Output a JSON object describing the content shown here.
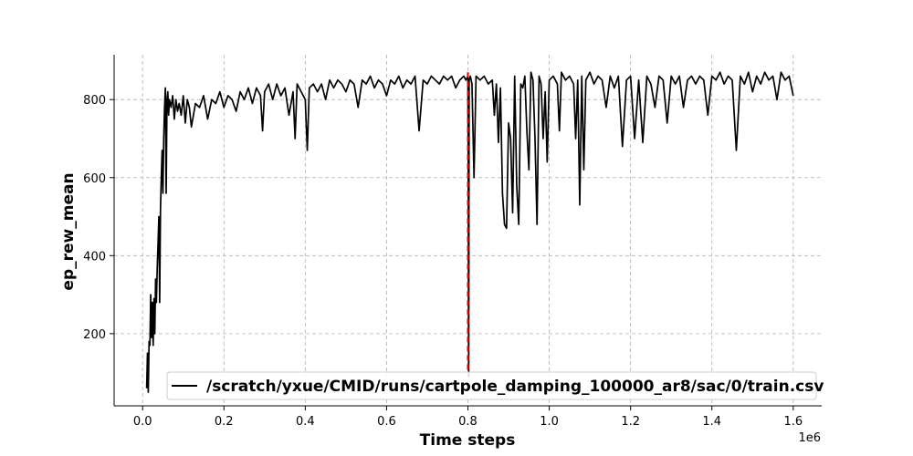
{
  "chart_data": {
    "type": "line",
    "title": "",
    "xlabel": "Time steps",
    "ylabel": "ep_rew_mean",
    "x_offset_label": "1e6",
    "xlim": [
      -0.07,
      1.67
    ],
    "ylim": [
      15,
      915
    ],
    "x_ticks": [
      0.0,
      0.2,
      0.4,
      0.6,
      0.8,
      1.0,
      1.2,
      1.4,
      1.6
    ],
    "x_tick_labels": [
      "0.0",
      "0.2",
      "0.4",
      "0.6",
      "0.8",
      "1.0",
      "1.2",
      "1.4",
      "1.6"
    ],
    "y_ticks": [
      200,
      400,
      600,
      800
    ],
    "y_tick_labels": [
      "200",
      "400",
      "600",
      "800"
    ],
    "grid": true,
    "legend_position": "lower-right",
    "vline": {
      "x": 0.8,
      "color": "#e00000",
      "style": "dashed"
    },
    "series": [
      {
        "name": "/scratch/yxue/CMID/runs/cartpole_damping_100000_ar8/sac/0/train.csv",
        "color": "#000000",
        "points": [
          [
            0.01,
            60
          ],
          [
            0.012,
            150
          ],
          [
            0.014,
            50
          ],
          [
            0.016,
            180
          ],
          [
            0.018,
            170
          ],
          [
            0.02,
            300
          ],
          [
            0.022,
            190
          ],
          [
            0.024,
            280
          ],
          [
            0.026,
            170
          ],
          [
            0.028,
            290
          ],
          [
            0.03,
            200
          ],
          [
            0.032,
            340
          ],
          [
            0.034,
            280
          ],
          [
            0.036,
            370
          ],
          [
            0.038,
            430
          ],
          [
            0.04,
            500
          ],
          [
            0.042,
            280
          ],
          [
            0.044,
            520
          ],
          [
            0.046,
            600
          ],
          [
            0.048,
            670
          ],
          [
            0.05,
            560
          ],
          [
            0.052,
            700
          ],
          [
            0.054,
            780
          ],
          [
            0.056,
            830
          ],
          [
            0.058,
            560
          ],
          [
            0.06,
            800
          ],
          [
            0.062,
            820
          ],
          [
            0.064,
            760
          ],
          [
            0.066,
            800
          ],
          [
            0.07,
            780
          ],
          [
            0.074,
            810
          ],
          [
            0.078,
            750
          ],
          [
            0.082,
            800
          ],
          [
            0.086,
            770
          ],
          [
            0.09,
            790
          ],
          [
            0.095,
            760
          ],
          [
            0.1,
            810
          ],
          [
            0.105,
            740
          ],
          [
            0.11,
            800
          ],
          [
            0.115,
            780
          ],
          [
            0.12,
            730
          ],
          [
            0.13,
            790
          ],
          [
            0.14,
            780
          ],
          [
            0.15,
            810
          ],
          [
            0.16,
            750
          ],
          [
            0.17,
            800
          ],
          [
            0.18,
            790
          ],
          [
            0.19,
            820
          ],
          [
            0.2,
            780
          ],
          [
            0.21,
            810
          ],
          [
            0.22,
            800
          ],
          [
            0.23,
            770
          ],
          [
            0.24,
            820
          ],
          [
            0.25,
            800
          ],
          [
            0.26,
            830
          ],
          [
            0.27,
            790
          ],
          [
            0.28,
            830
          ],
          [
            0.29,
            810
          ],
          [
            0.295,
            720
          ],
          [
            0.3,
            820
          ],
          [
            0.31,
            840
          ],
          [
            0.32,
            800
          ],
          [
            0.33,
            840
          ],
          [
            0.34,
            810
          ],
          [
            0.35,
            830
          ],
          [
            0.36,
            760
          ],
          [
            0.37,
            820
          ],
          [
            0.375,
            700
          ],
          [
            0.38,
            840
          ],
          [
            0.39,
            820
          ],
          [
            0.4,
            800
          ],
          [
            0.405,
            670
          ],
          [
            0.41,
            830
          ],
          [
            0.42,
            840
          ],
          [
            0.43,
            820
          ],
          [
            0.44,
            840
          ],
          [
            0.45,
            800
          ],
          [
            0.46,
            850
          ],
          [
            0.47,
            830
          ],
          [
            0.48,
            850
          ],
          [
            0.49,
            840
          ],
          [
            0.5,
            820
          ],
          [
            0.51,
            850
          ],
          [
            0.52,
            840
          ],
          [
            0.53,
            780
          ],
          [
            0.54,
            850
          ],
          [
            0.55,
            840
          ],
          [
            0.56,
            860
          ],
          [
            0.57,
            830
          ],
          [
            0.58,
            850
          ],
          [
            0.59,
            840
          ],
          [
            0.6,
            810
          ],
          [
            0.61,
            850
          ],
          [
            0.62,
            840
          ],
          [
            0.63,
            860
          ],
          [
            0.64,
            830
          ],
          [
            0.65,
            850
          ],
          [
            0.66,
            840
          ],
          [
            0.67,
            860
          ],
          [
            0.68,
            720
          ],
          [
            0.69,
            850
          ],
          [
            0.7,
            840
          ],
          [
            0.71,
            860
          ],
          [
            0.72,
            850
          ],
          [
            0.73,
            840
          ],
          [
            0.74,
            860
          ],
          [
            0.75,
            850
          ],
          [
            0.76,
            860
          ],
          [
            0.77,
            830
          ],
          [
            0.78,
            850
          ],
          [
            0.79,
            860
          ],
          [
            0.795,
            850
          ],
          [
            0.8,
            860
          ],
          [
            0.801,
            560
          ],
          [
            0.802,
            90
          ],
          [
            0.803,
            850
          ],
          [
            0.806,
            860
          ],
          [
            0.81,
            840
          ],
          [
            0.815,
            600
          ],
          [
            0.82,
            860
          ],
          [
            0.83,
            850
          ],
          [
            0.84,
            860
          ],
          [
            0.85,
            840
          ],
          [
            0.86,
            850
          ],
          [
            0.865,
            760
          ],
          [
            0.87,
            840
          ],
          [
            0.875,
            690
          ],
          [
            0.88,
            830
          ],
          [
            0.885,
            560
          ],
          [
            0.89,
            480
          ],
          [
            0.895,
            470
          ],
          [
            0.9,
            740
          ],
          [
            0.905,
            700
          ],
          [
            0.91,
            510
          ],
          [
            0.915,
            860
          ],
          [
            0.92,
            580
          ],
          [
            0.925,
            480
          ],
          [
            0.93,
            840
          ],
          [
            0.935,
            830
          ],
          [
            0.94,
            860
          ],
          [
            0.945,
            720
          ],
          [
            0.95,
            620
          ],
          [
            0.955,
            870
          ],
          [
            0.96,
            850
          ],
          [
            0.965,
            700
          ],
          [
            0.97,
            480
          ],
          [
            0.975,
            860
          ],
          [
            0.98,
            840
          ],
          [
            0.985,
            700
          ],
          [
            0.99,
            820
          ],
          [
            0.995,
            640
          ],
          [
            1.0,
            850
          ],
          [
            1.01,
            860
          ],
          [
            1.02,
            840
          ],
          [
            1.025,
            720
          ],
          [
            1.03,
            870
          ],
          [
            1.04,
            850
          ],
          [
            1.05,
            860
          ],
          [
            1.06,
            840
          ],
          [
            1.065,
            700
          ],
          [
            1.07,
            850
          ],
          [
            1.075,
            530
          ],
          [
            1.08,
            860
          ],
          [
            1.085,
            620
          ],
          [
            1.09,
            850
          ],
          [
            1.1,
            870
          ],
          [
            1.11,
            840
          ],
          [
            1.12,
            860
          ],
          [
            1.13,
            850
          ],
          [
            1.14,
            780
          ],
          [
            1.15,
            860
          ],
          [
            1.16,
            830
          ],
          [
            1.17,
            860
          ],
          [
            1.18,
            680
          ],
          [
            1.19,
            850
          ],
          [
            1.2,
            860
          ],
          [
            1.21,
            700
          ],
          [
            1.22,
            850
          ],
          [
            1.23,
            690
          ],
          [
            1.24,
            860
          ],
          [
            1.25,
            840
          ],
          [
            1.26,
            780
          ],
          [
            1.27,
            860
          ],
          [
            1.28,
            850
          ],
          [
            1.29,
            740
          ],
          [
            1.3,
            860
          ],
          [
            1.31,
            840
          ],
          [
            1.32,
            860
          ],
          [
            1.33,
            780
          ],
          [
            1.34,
            850
          ],
          [
            1.35,
            860
          ],
          [
            1.36,
            840
          ],
          [
            1.37,
            860
          ],
          [
            1.38,
            850
          ],
          [
            1.39,
            760
          ],
          [
            1.4,
            860
          ],
          [
            1.41,
            850
          ],
          [
            1.42,
            870
          ],
          [
            1.43,
            840
          ],
          [
            1.44,
            860
          ],
          [
            1.45,
            850
          ],
          [
            1.46,
            670
          ],
          [
            1.47,
            860
          ],
          [
            1.48,
            840
          ],
          [
            1.49,
            870
          ],
          [
            1.5,
            820
          ],
          [
            1.51,
            860
          ],
          [
            1.52,
            840
          ],
          [
            1.53,
            870
          ],
          [
            1.54,
            850
          ],
          [
            1.55,
            860
          ],
          [
            1.56,
            800
          ],
          [
            1.57,
            870
          ],
          [
            1.58,
            850
          ],
          [
            1.59,
            860
          ],
          [
            1.6,
            810
          ]
        ]
      }
    ]
  }
}
